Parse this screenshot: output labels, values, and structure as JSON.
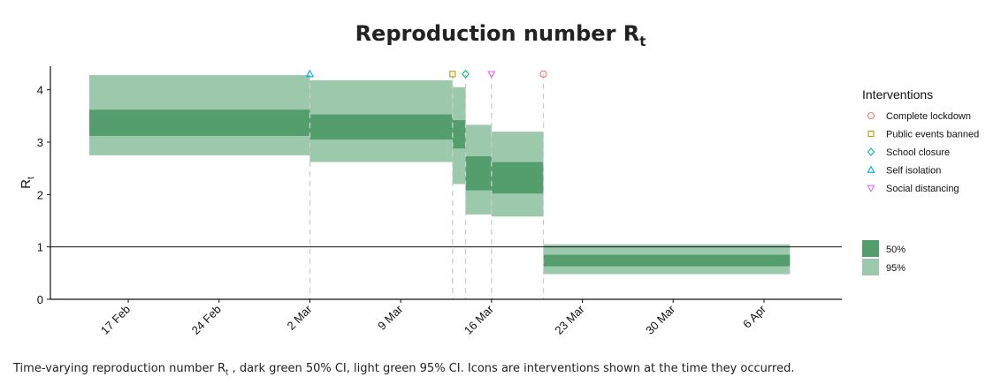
{
  "chart_data": {
    "type": "area",
    "title": "Reproduction number R",
    "title_subscript": "t",
    "ylabel": "R",
    "ylabel_subscript": "t",
    "xlabel": "",
    "ylim": [
      0,
      4.45
    ],
    "yticks": [
      0,
      1,
      2,
      3,
      4
    ],
    "xlim": [
      "2020-02-11",
      "2020-04-12"
    ],
    "xticks": [
      {
        "date": "2020-02-17",
        "label": "17 Feb"
      },
      {
        "date": "2020-02-24",
        "label": "24 Feb"
      },
      {
        "date": "2020-03-02",
        "label": "2 Mar"
      },
      {
        "date": "2020-03-09",
        "label": "9 Mar"
      },
      {
        "date": "2020-03-16",
        "label": "16 Mar"
      },
      {
        "date": "2020-03-23",
        "label": "23 Mar"
      },
      {
        "date": "2020-03-30",
        "label": "30 Mar"
      },
      {
        "date": "2020-04-06",
        "label": "6 Apr"
      }
    ],
    "reference_line": 1,
    "segments": [
      {
        "start": "2020-02-14",
        "end": "2020-03-02",
        "ci50": [
          3.12,
          3.62
        ],
        "ci95": [
          2.75,
          4.28
        ]
      },
      {
        "start": "2020-03-02",
        "end": "2020-03-13",
        "ci50": [
          3.05,
          3.53
        ],
        "ci95": [
          2.62,
          4.18
        ]
      },
      {
        "start": "2020-03-13",
        "end": "2020-03-14",
        "ci50": [
          2.88,
          3.42
        ],
        "ci95": [
          2.2,
          4.05
        ]
      },
      {
        "start": "2020-03-14",
        "end": "2020-03-16",
        "ci50": [
          2.08,
          2.73
        ],
        "ci95": [
          1.62,
          3.33
        ]
      },
      {
        "start": "2020-03-16",
        "end": "2020-03-20",
        "ci50": [
          2.02,
          2.62
        ],
        "ci95": [
          1.58,
          3.2
        ]
      },
      {
        "start": "2020-03-20",
        "end": "2020-04-08",
        "ci50": [
          0.63,
          0.85
        ],
        "ci95": [
          0.48,
          1.05
        ]
      }
    ],
    "interventions": [
      {
        "label": "Self isolation",
        "date": "2020-03-02",
        "shape": "triangle-up",
        "color": "#00a9ff"
      },
      {
        "label": "Public events banned",
        "date": "2020-03-13",
        "shape": "square",
        "color": "#a3a500"
      },
      {
        "label": "School closure",
        "date": "2020-03-14",
        "shape": "diamond",
        "color": "#00bf7d"
      },
      {
        "label": "Social distancing",
        "date": "2020-03-16",
        "shape": "triangle-down",
        "color": "#e76bf3"
      },
      {
        "label": "Complete lockdown",
        "date": "2020-03-20",
        "shape": "circle",
        "color": "#f8766d"
      }
    ],
    "legend_interventions_title": "Interventions",
    "legend_interventions": [
      {
        "label": "Complete lockdown",
        "shape": "circle",
        "color": "#f8766d"
      },
      {
        "label": "Public events banned",
        "shape": "square",
        "color": "#a3a500"
      },
      {
        "label": "School closure",
        "shape": "diamond",
        "color": "#00bf7d"
      },
      {
        "label": "Self isolation",
        "shape": "triangle-up",
        "color": "#00a9ff"
      },
      {
        "label": "Social distancing",
        "shape": "triangle-down",
        "color": "#e76bf3"
      }
    ],
    "legend_ci": [
      {
        "label": "50%",
        "color": "#539e6c"
      },
      {
        "label": "95%",
        "color": "#9cc8ab"
      }
    ],
    "legend_placement": "right",
    "grid": false,
    "colors": {
      "ci50": "#539e6c",
      "ci95": "#9cc8ab",
      "vline": "#cccccc"
    }
  },
  "caption": {
    "before": "Time-varying reproduction number R",
    "sub": "t",
    "after": " , dark green 50% CI, light green 95% CI. Icons are interventions shown at the time they occurred."
  }
}
